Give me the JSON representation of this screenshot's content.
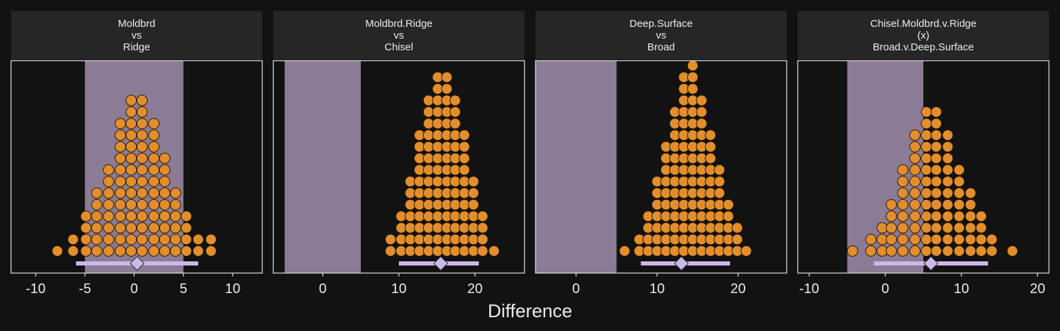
{
  "chart_data": {
    "type": "dotplot",
    "xlabel": "Difference",
    "colors": {
      "background": "#121212",
      "strip": "#262626",
      "panel_border": "#e6e6e6",
      "rope_band": "#8c7b94",
      "dots": "#e38e2d",
      "dot_outline": "#231808",
      "interval": "#cdb8eb"
    },
    "panels": [
      {
        "strip": [
          "Moldbrd",
          "vs",
          "Ridge"
        ],
        "xlim": [
          -12.5,
          13
        ],
        "ticks": [
          -10,
          -5,
          0,
          5,
          10
        ],
        "tick_labels": [
          "-10",
          "-5",
          "0",
          "5",
          "10"
        ],
        "rope": [
          -5,
          5
        ],
        "point_estimate": 0.3,
        "interval": [
          -5.9,
          6.5
        ],
        "dots": {
          "x": [
            -7.8,
            -6.2,
            -4.9,
            -3.8,
            -2.6,
            -1.4,
            -0.3,
            0.8,
            2.0,
            3.1,
            4.2,
            5.3,
            6.5,
            7.8
          ],
          "counts": [
            1,
            2,
            4,
            6,
            8,
            12,
            14,
            14,
            12,
            9,
            6,
            4,
            2,
            2
          ]
        }
      },
      {
        "strip": [
          "Moldbrd.Ridge",
          "vs",
          "Chisel"
        ],
        "xlim": [
          -6.5,
          26.5
        ],
        "ticks": [
          0,
          10,
          20
        ],
        "tick_labels": [
          "0",
          "10",
          "20"
        ],
        "rope": [
          -5,
          5
        ],
        "point_estimate": 15.5,
        "interval": [
          10,
          20.5
        ],
        "dots": {
          "x": [
            8.9,
            10.3,
            11.5,
            12.7,
            13.9,
            15.1,
            16.3,
            17.4,
            18.6,
            19.8,
            21.0,
            22.5
          ],
          "counts": [
            2,
            4,
            7,
            11,
            14,
            16,
            16,
            14,
            11,
            7,
            4,
            1
          ]
        }
      },
      {
        "strip": [
          "Deep.Surface",
          "vs",
          "Broad"
        ],
        "xlim": [
          -5,
          26
        ],
        "ticks": [
          0,
          10,
          20
        ],
        "tick_labels": [
          "0",
          "10",
          "20"
        ],
        "rope": [
          -5,
          5
        ],
        "point_estimate": 13,
        "interval": [
          8,
          19
        ],
        "dots": {
          "x": [
            6.0,
            7.8,
            8.9,
            10.0,
            11.1,
            12.2,
            13.3,
            14.4,
            15.5,
            16.6,
            17.7,
            18.8,
            19.9,
            21.0
          ],
          "counts": [
            1,
            2,
            4,
            7,
            10,
            13,
            16,
            18,
            14,
            11,
            8,
            5,
            3,
            1
          ]
        }
      },
      {
        "strip": [
          "Chisel.Moldbrd.v.Ridge",
          "(x)",
          "Broad.v.Deep.Surface"
        ],
        "xlim": [
          -11.5,
          21.5
        ],
        "ticks": [
          -10,
          0,
          10,
          20
        ],
        "tick_labels": [
          "-10",
          "0",
          "10",
          "20"
        ],
        "rope": [
          -5,
          5
        ],
        "point_estimate": 6,
        "interval": [
          -1.5,
          13.5
        ],
        "dots": {
          "x": [
            -4.3,
            -1.9,
            -0.4,
            0.8,
            2.3,
            3.9,
            5.4,
            6.7,
            8.2,
            9.7,
            11.2,
            12.6,
            14.0,
            16.7
          ],
          "counts": [
            1,
            2,
            3,
            5,
            8,
            11,
            13,
            13,
            11,
            8,
            6,
            4,
            2,
            1
          ]
        }
      }
    ]
  }
}
